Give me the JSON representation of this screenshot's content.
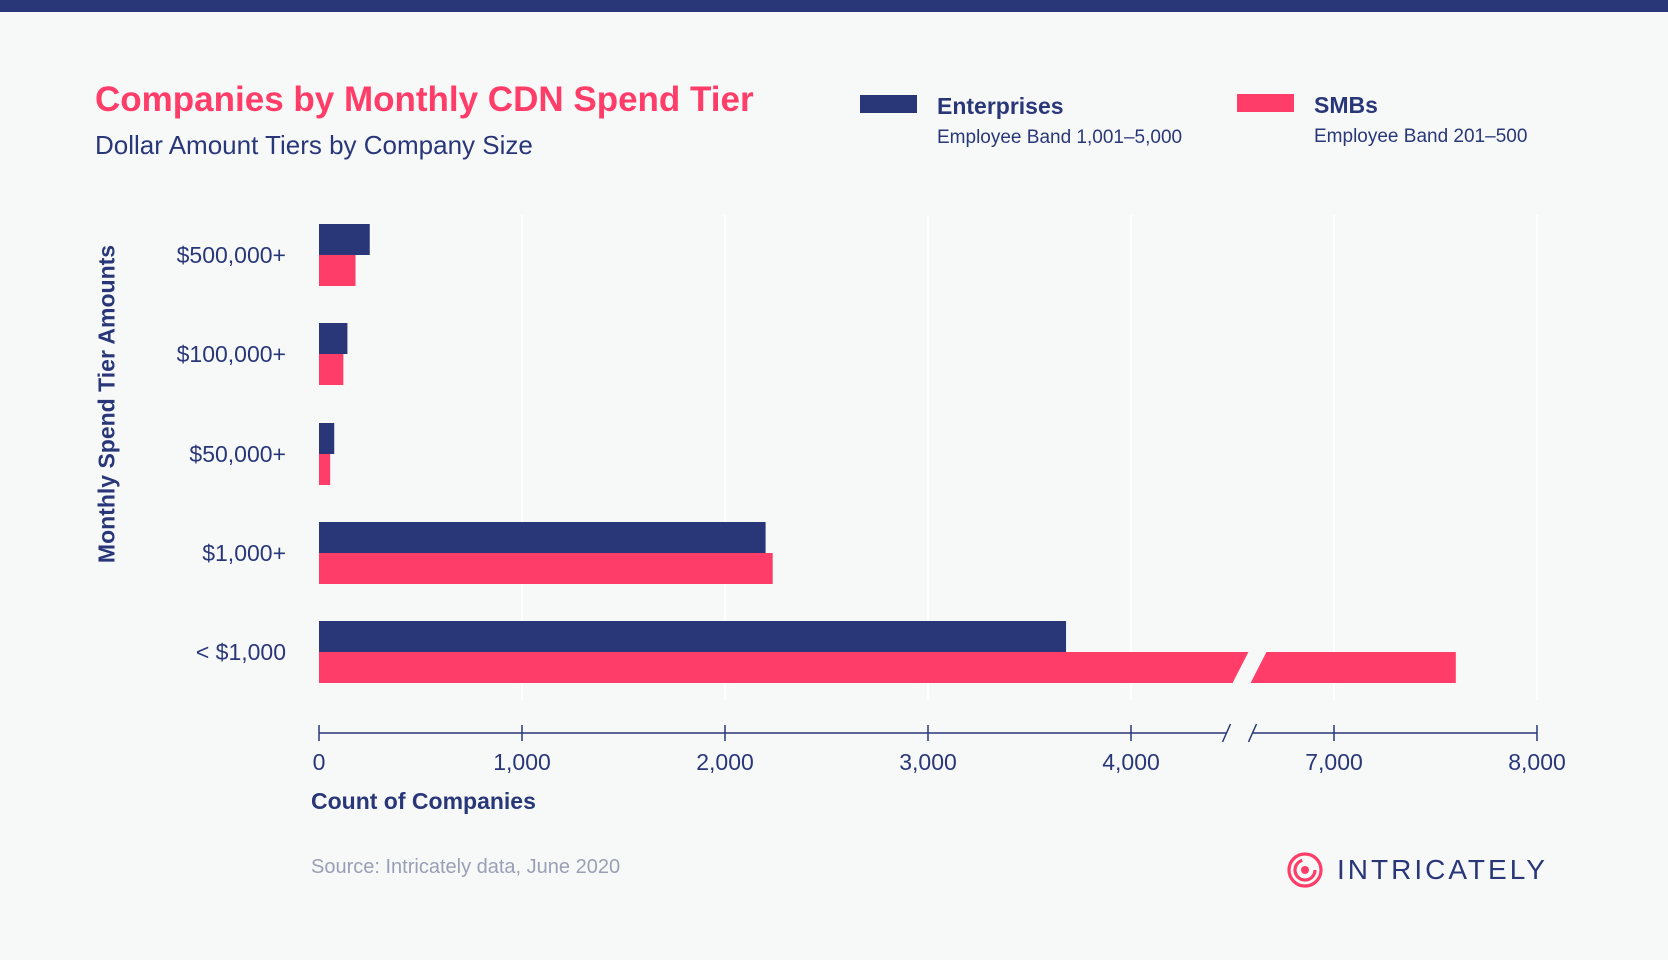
{
  "header": {
    "title": "Companies by Monthly CDN Spend Tier",
    "subtitle": "Dollar Amount Tiers by Company Size"
  },
  "legend": {
    "enterprises": {
      "name": "Enterprises",
      "sub": "Employee Band 1,001–5,000",
      "color": "#293779"
    },
    "smbs": {
      "name": "SMBs",
      "sub": "Employee Band 201–500",
      "color": "#ff3d68"
    }
  },
  "chart_data": {
    "type": "bar",
    "orientation": "horizontal",
    "categories": [
      "$500,000+",
      "$100,000+",
      "$50,000+",
      "$1,000+",
      "< $1,000"
    ],
    "series": [
      {
        "name": "Enterprises",
        "color": "#293779",
        "values": [
          250,
          140,
          75,
          2200,
          3680
        ]
      },
      {
        "name": "SMBs",
        "color": "#ff3d68",
        "values": [
          180,
          120,
          55,
          2235,
          7600
        ]
      }
    ],
    "xlabel": "Count of Companies",
    "ylabel": "Monthly Spend Tier Amounts",
    "x_ticks": [
      "0",
      "1,000",
      "2,000",
      "3,000",
      "4,000",
      "7,000",
      "8,000"
    ],
    "x_tick_values": [
      0,
      1000,
      2000,
      3000,
      4000,
      7000,
      8000
    ],
    "axis_break": [
      4500,
      6500
    ],
    "xlim": [
      0,
      8000
    ],
    "grid": true,
    "legend_position": "top-right"
  },
  "footer": {
    "source": "Source: Intricately data, June 2020",
    "brand": "INTRICATELY",
    "brand_icon": "intricately-logo-icon",
    "brand_color": "#ff3d68"
  }
}
